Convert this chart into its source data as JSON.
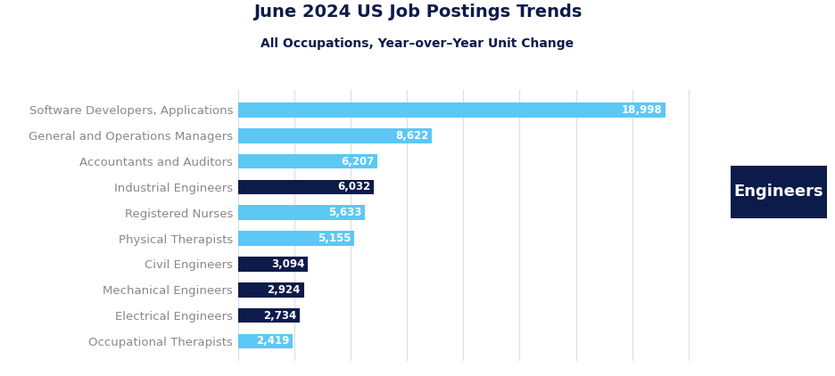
{
  "title": "June 2024 US Job Postings Trends",
  "subtitle": "All Occupations, Year–over–Year Unit Change",
  "categories": [
    "Software Developers, Applications",
    "General and Operations Managers",
    "Accountants and Auditors",
    "Industrial Engineers",
    "Registered Nurses",
    "Physical Therapists",
    "Civil Engineers",
    "Mechanical Engineers",
    "Electrical Engineers",
    "Occupational Therapists"
  ],
  "values": [
    18998,
    8622,
    6207,
    6032,
    5633,
    5155,
    3094,
    2924,
    2734,
    2419
  ],
  "bar_colors": [
    "#5BC8F5",
    "#5BC8F5",
    "#5BC8F5",
    "#0D1B4B",
    "#5BC8F5",
    "#5BC8F5",
    "#0D1B4B",
    "#0D1B4B",
    "#0D1B4B",
    "#5BC8F5"
  ],
  "title_color": "#0D1B4B",
  "subtitle_color": "#0D1B4B",
  "category_label_color": "#888888",
  "background_color": "#FFFFFF",
  "annotation_box_color": "#0D1B4B",
  "annotation_text": "Engineers",
  "annotation_text_color": "#FFFFFF",
  "xlim": [
    0,
    21500
  ],
  "title_fontsize": 14,
  "subtitle_fontsize": 10,
  "bar_label_fontsize": 8.5,
  "category_fontsize": 9.5
}
